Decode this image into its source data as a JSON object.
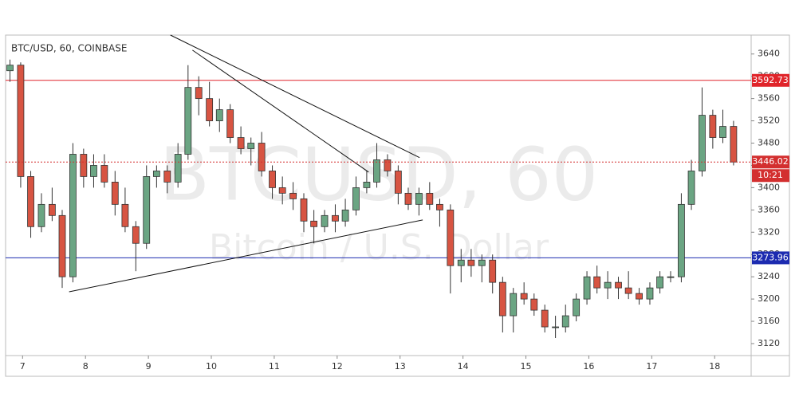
{
  "chart_data": {
    "type": "candlestick",
    "title": "BTC/USD, 60, COINBASE",
    "watermark": "BTCUSD, 60",
    "watermark_subtitle": "Bitcoin / U.S. Dollar",
    "x": [
      6.8,
      6.97,
      7.13,
      7.3,
      7.47,
      7.63,
      7.8,
      7.97,
      8.13,
      8.3,
      8.47,
      8.63,
      8.8,
      8.97,
      9.13,
      9.3,
      9.47,
      9.63,
      9.8,
      9.97,
      10.13,
      10.3,
      10.47,
      10.63,
      10.8,
      10.97,
      11.13,
      11.3,
      11.47,
      11.63,
      11.8,
      11.97,
      12.13,
      12.3,
      12.47,
      12.63,
      12.8,
      12.97,
      13.13,
      13.3,
      13.47,
      13.63,
      13.8,
      13.97,
      14.13,
      14.3,
      14.47,
      14.63,
      14.8,
      14.97,
      15.13,
      15.3,
      15.47,
      15.63,
      15.8,
      15.97,
      16.13,
      16.3,
      16.47,
      16.63,
      16.8,
      16.97,
      17.13,
      17.3,
      17.47,
      17.63,
      17.8,
      17.97,
      18.13,
      18.3
    ],
    "open": [
      3610,
      3620,
      3420,
      3330,
      3370,
      3350,
      3240,
      3460,
      3420,
      3440,
      3410,
      3370,
      3330,
      3300,
      3420,
      3430,
      3410,
      3460,
      3580,
      3560,
      3520,
      3540,
      3490,
      3470,
      3480,
      3430,
      3400,
      3390,
      3380,
      3340,
      3330,
      3350,
      3340,
      3360,
      3400,
      3410,
      3450,
      3430,
      3390,
      3370,
      3390,
      3370,
      3360,
      3260,
      3270,
      3260,
      3270,
      3230,
      3170,
      3210,
      3200,
      3180,
      3150,
      3150,
      3170,
      3200,
      3240,
      3220,
      3230,
      3220,
      3210,
      3200,
      3220,
      3240,
      3240,
      3370,
      3430,
      3530,
      3490,
      3510
    ],
    "high": [
      3630,
      3625,
      3430,
      3390,
      3400,
      3360,
      3480,
      3470,
      3460,
      3460,
      3430,
      3400,
      3340,
      3440,
      3440,
      3440,
      3480,
      3620,
      3600,
      3590,
      3560,
      3550,
      3510,
      3490,
      3500,
      3440,
      3420,
      3410,
      3390,
      3360,
      3360,
      3370,
      3380,
      3420,
      3430,
      3480,
      3460,
      3440,
      3400,
      3400,
      3410,
      3380,
      3370,
      3290,
      3290,
      3280,
      3280,
      3240,
      3220,
      3230,
      3210,
      3190,
      3170,
      3190,
      3210,
      3250,
      3260,
      3250,
      3240,
      3250,
      3220,
      3230,
      3250,
      3250,
      3390,
      3450,
      3580,
      3540,
      3540,
      3520
    ],
    "low": [
      3590,
      3400,
      3310,
      3320,
      3340,
      3220,
      3230,
      3400,
      3400,
      3400,
      3350,
      3320,
      3250,
      3290,
      3400,
      3390,
      3400,
      3450,
      3530,
      3510,
      3500,
      3480,
      3460,
      3440,
      3420,
      3380,
      3370,
      3360,
      3320,
      3300,
      3320,
      3320,
      3330,
      3350,
      3390,
      3400,
      3420,
      3370,
      3360,
      3350,
      3360,
      3330,
      3210,
      3230,
      3240,
      3230,
      3210,
      3140,
      3140,
      3190,
      3170,
      3140,
      3130,
      3140,
      3160,
      3190,
      3210,
      3200,
      3200,
      3200,
      3190,
      3190,
      3210,
      3230,
      3230,
      3360,
      3420,
      3470,
      3480,
      3440
    ],
    "close": [
      3620,
      3420,
      3330,
      3370,
      3350,
      3240,
      3460,
      3420,
      3440,
      3410,
      3370,
      3330,
      3300,
      3420,
      3430,
      3410,
      3460,
      3580,
      3560,
      3520,
      3540,
      3490,
      3470,
      3480,
      3430,
      3400,
      3390,
      3380,
      3340,
      3330,
      3350,
      3340,
      3360,
      3400,
      3410,
      3450,
      3430,
      3390,
      3370,
      3390,
      3370,
      3360,
      3260,
      3270,
      3260,
      3270,
      3230,
      3170,
      3210,
      3200,
      3180,
      3150,
      3150,
      3170,
      3200,
      3240,
      3220,
      3230,
      3220,
      3210,
      3200,
      3220,
      3240,
      3240,
      3370,
      3430,
      3530,
      3490,
      3510,
      3446.02
    ],
    "up_color": "#6ba583",
    "down_color": "#d75442",
    "xlim": [
      6.73,
      18.58
    ],
    "ylim": [
      3098.5,
      3674
    ],
    "xticks": [
      7,
      8,
      9,
      10,
      11,
      12,
      13,
      14,
      15,
      16,
      17,
      18
    ],
    "yticks": [
      3120,
      3160,
      3200,
      3240,
      3280,
      3320,
      3360,
      3400,
      3440,
      3480,
      3520,
      3560,
      3600,
      3640
    ],
    "levels": [
      {
        "value": 3592.73,
        "color": "#e0242a"
      },
      {
        "value": 3273.96,
        "color": "#1c2bb0"
      }
    ],
    "last_price": {
      "value": 3446.02,
      "color": "#d32f2f",
      "countdown": "10:21"
    },
    "trendlines": [
      {
        "x": [
          9.35,
          13.31
        ],
        "y": [
          3674,
          3454
        ]
      },
      {
        "x": [
          9.7,
          12.5
        ],
        "y": [
          3647,
          3428
        ]
      },
      {
        "x": [
          7.74,
          13.36
        ],
        "y": [
          3213,
          3342
        ]
      }
    ]
  }
}
